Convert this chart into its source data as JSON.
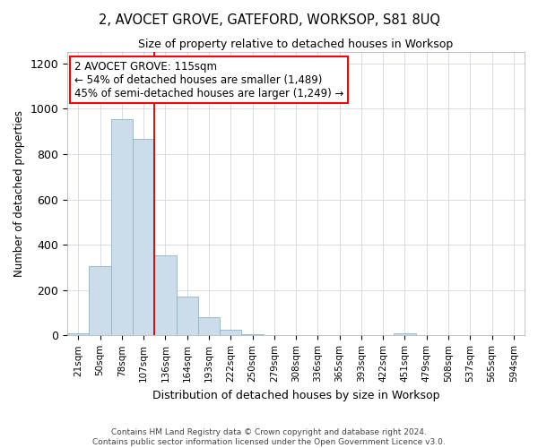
{
  "title": "2, AVOCET GROVE, GATEFORD, WORKSOP, S81 8UQ",
  "subtitle": "Size of property relative to detached houses in Worksop",
  "xlabel": "Distribution of detached houses by size in Worksop",
  "ylabel": "Number of detached properties",
  "footer_line1": "Contains HM Land Registry data © Crown copyright and database right 2024.",
  "footer_line2": "Contains public sector information licensed under the Open Government Licence v3.0.",
  "annotation_line1": "2 AVOCET GROVE: 115sqm",
  "annotation_line2": "← 54% of detached houses are smaller (1,489)",
  "annotation_line3": "45% of semi-detached houses are larger (1,249) →",
  "bar_color": "#ccdce8",
  "bar_edge_color": "#8ab4cc",
  "vline_color": "#cc0000",
  "grid_color": "#d8dde6",
  "background_color": "#ffffff",
  "categories": [
    "21sqm",
    "50sqm",
    "78sqm",
    "107sqm",
    "136sqm",
    "164sqm",
    "193sqm",
    "222sqm",
    "250sqm",
    "279sqm",
    "308sqm",
    "336sqm",
    "365sqm",
    "393sqm",
    "422sqm",
    "451sqm",
    "479sqm",
    "508sqm",
    "537sqm",
    "565sqm",
    "594sqm"
  ],
  "values": [
    10,
    305,
    955,
    865,
    355,
    170,
    80,
    25,
    5,
    0,
    0,
    0,
    0,
    0,
    0,
    10,
    0,
    0,
    0,
    0,
    0
  ],
  "ylim": [
    0,
    1250
  ],
  "yticks": [
    0,
    200,
    400,
    600,
    800,
    1000,
    1200
  ],
  "vline_x_index": 3.5,
  "fig_width": 6.0,
  "fig_height": 5.0,
  "dpi": 100
}
